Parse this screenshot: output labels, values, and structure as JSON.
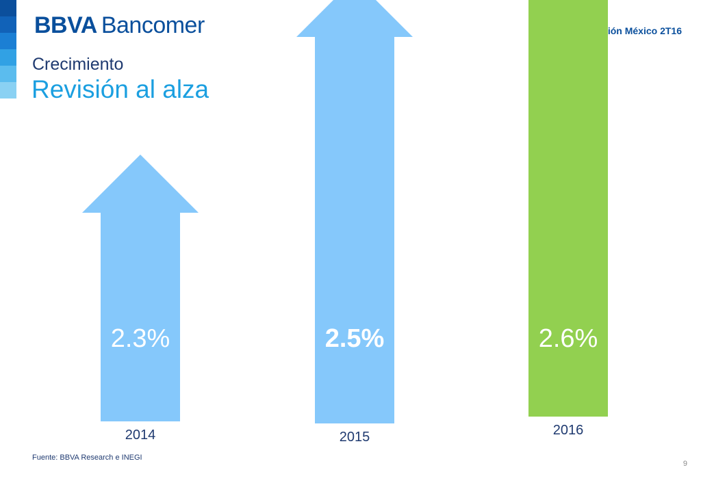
{
  "header": {
    "brand_bold": "BBVA",
    "brand_name": "Bancomer",
    "report": "Situación México 2T16",
    "kicker": "Crecimiento",
    "title": "Revisión al alza"
  },
  "stripe_colors": [
    "#0b4f9c",
    "#1162b8",
    "#1b7fd4",
    "#31a1e4",
    "#5bbcee",
    "#8ad1f3"
  ],
  "chart_data": {
    "type": "bar",
    "categories": [
      "2014",
      "2015",
      "2016"
    ],
    "values": [
      2.3,
      2.5,
      2.6
    ],
    "value_labels": [
      "2.3%",
      "2.5%",
      "2.6%"
    ],
    "colors": [
      "#85c8fb",
      "#85c8fb",
      "#92d050"
    ],
    "title": "",
    "xlabel": "",
    "ylabel": ""
  },
  "footer": {
    "source": "Fuente: BBVA Research e INEGI",
    "page_number": "9"
  }
}
